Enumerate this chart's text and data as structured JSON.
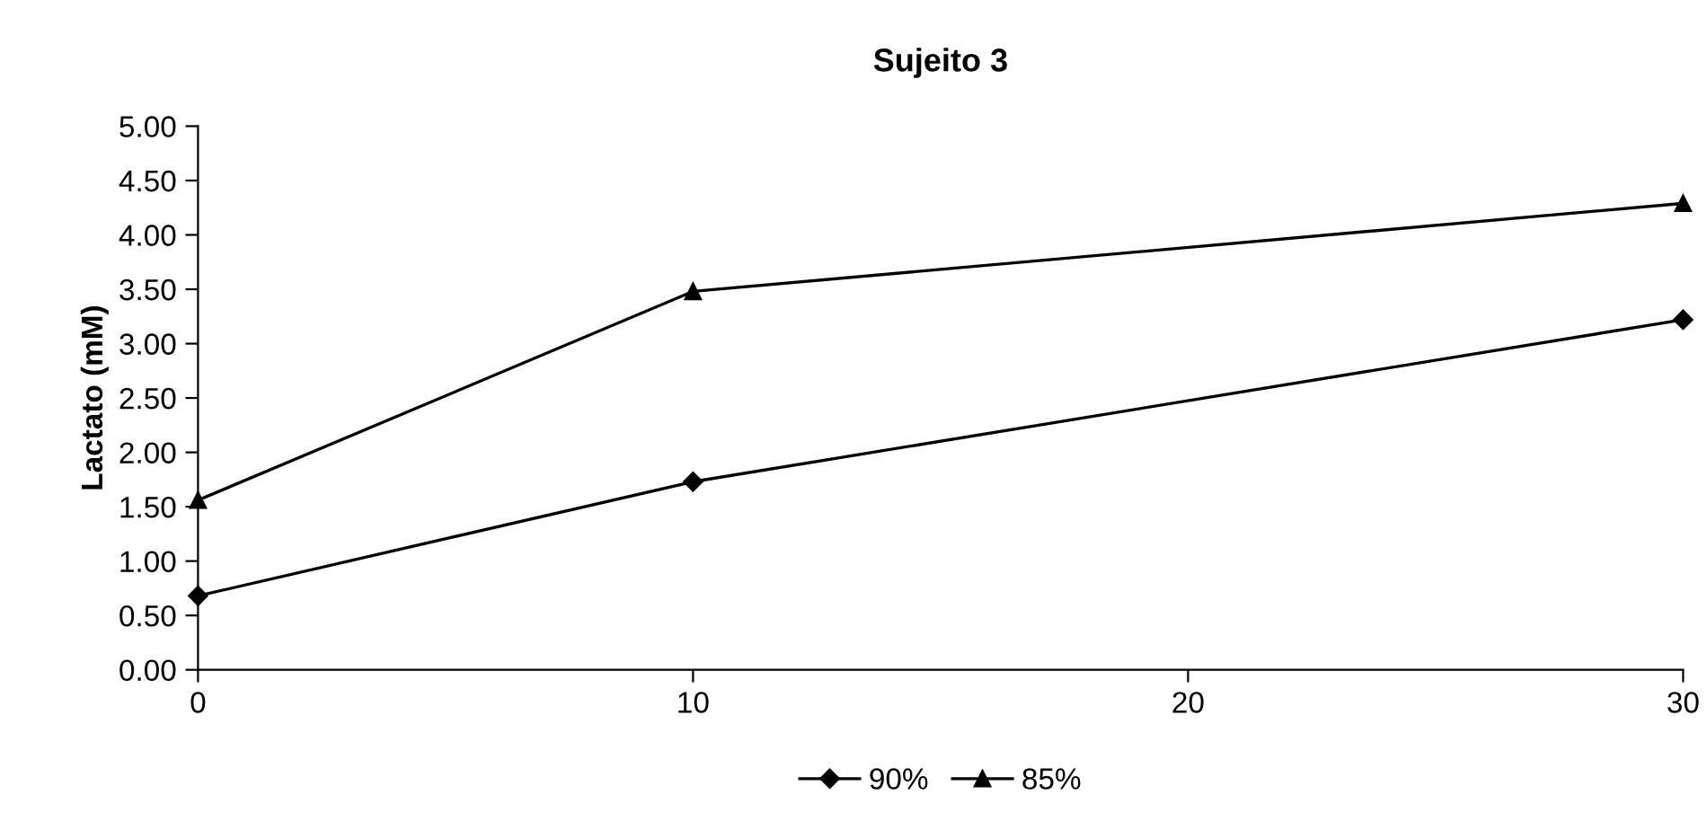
{
  "chart_data": {
    "type": "line",
    "title": "Sujeito 3",
    "ylabel": "Lactato (mM)",
    "x": [
      0,
      10,
      30
    ],
    "series": [
      {
        "name": "90%",
        "color": "#000000",
        "marker": "diamond",
        "values": [
          0.68,
          1.73,
          3.22
        ]
      },
      {
        "name": "85%",
        "color": "#000000",
        "marker": "triangle",
        "values": [
          1.56,
          3.48,
          4.29
        ]
      }
    ],
    "xlim": [
      0,
      30
    ],
    "xticks": [
      0,
      10,
      20,
      30
    ],
    "ylim": [
      0,
      5
    ],
    "yticks": [
      {
        "value": 0,
        "label": "0.00"
      },
      {
        "value": 0.5,
        "label": "0.50"
      },
      {
        "value": 1,
        "label": "1.00"
      },
      {
        "value": 1.5,
        "label": "1.50"
      },
      {
        "value": 2,
        "label": "2.00"
      },
      {
        "value": 2.5,
        "label": "2.50"
      },
      {
        "value": 3,
        "label": "3.00"
      },
      {
        "value": 3.5,
        "label": "3.50"
      },
      {
        "value": 4,
        "label": "4.00"
      },
      {
        "value": 4.5,
        "label": "4.50"
      },
      {
        "value": 5,
        "label": "5.00"
      }
    ],
    "grid": false,
    "legend": "bottom",
    "line_style": "solid"
  }
}
